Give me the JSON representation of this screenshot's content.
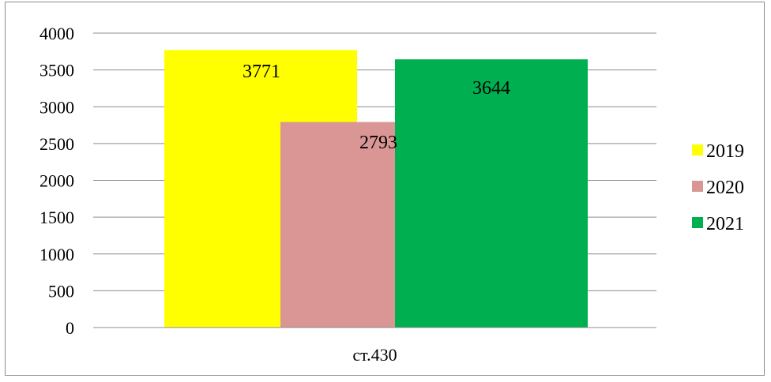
{
  "chart_data": {
    "type": "bar",
    "title": "",
    "xlabel": "",
    "ylabel": "",
    "categories": [
      "ст.430"
    ],
    "series": [
      {
        "name": "2019",
        "values": [
          3771
        ],
        "color": "#ffff00"
      },
      {
        "name": "2020",
        "values": [
          2793
        ],
        "color": "#d99694"
      },
      {
        "name": "2021",
        "values": [
          3644
        ],
        "color": "#00b050"
      }
    ],
    "ylim": [
      0,
      4000
    ],
    "yticks": [
      "0",
      "500",
      "1000",
      "1500",
      "2000",
      "2500",
      "3000",
      "3500",
      "4000"
    ],
    "grid": true,
    "legend_position": "right",
    "data_labels": [
      "3771",
      "2793",
      "3644"
    ]
  }
}
